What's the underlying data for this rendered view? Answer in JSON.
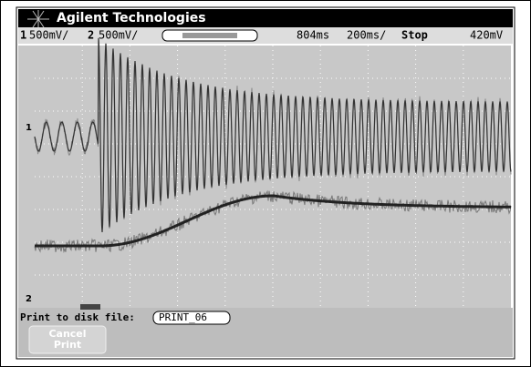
{
  "header": {
    "brand": "Agilent Technologies",
    "status": {
      "ch1_label": "1",
      "ch1_scale": "500mV/",
      "ch2_label": "2",
      "ch2_scale": "500mV/",
      "delay": "804ms",
      "timebase": "200ms/",
      "run_state": "Stop",
      "trigger_level": "420mV"
    }
  },
  "screen": {
    "ch1_marker": "1",
    "ch2_marker": "2"
  },
  "footer": {
    "prompt": "Print to disk file:",
    "file_name": "PRINT_06",
    "softkey": "Cancel Print"
  }
}
